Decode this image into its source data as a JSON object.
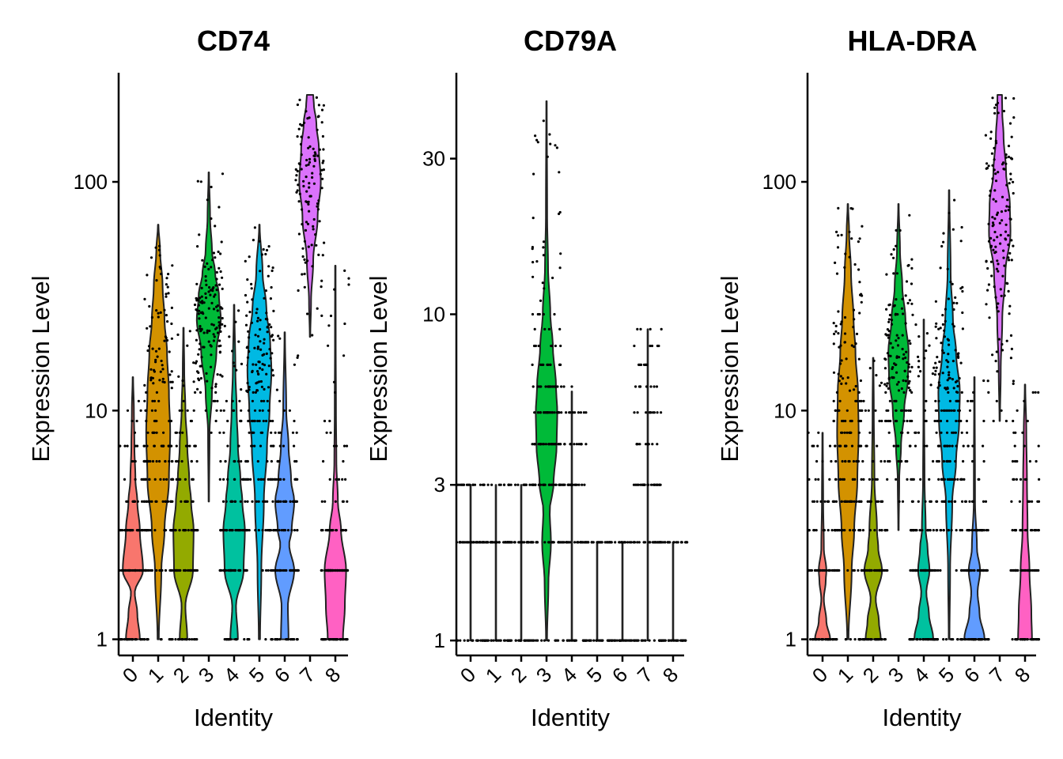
{
  "chart_data": [
    {
      "type": "violin",
      "title": "CD74",
      "xlabel": "Identity",
      "ylabel": "Expression Level",
      "yscale": "log",
      "ylim": [
        0.85,
        300
      ],
      "yticks": [
        1,
        10,
        100
      ],
      "categories": [
        "0",
        "1",
        "2",
        "3",
        "4",
        "5",
        "6",
        "7",
        "8"
      ],
      "colors": [
        "#F8766D",
        "#D39200",
        "#93AA00",
        "#00BA38",
        "#00C19F",
        "#00B9E3",
        "#619CFF",
        "#DB72FB",
        "#FF61C3"
      ],
      "series": [
        {
          "category": "0",
          "min": 1,
          "max": 14,
          "median": 2,
          "shape": [
            [
              1,
              0.55
            ],
            [
              1.3,
              0.35
            ],
            [
              1.6,
              0.15
            ],
            [
              2,
              0.8
            ],
            [
              3,
              0.55
            ],
            [
              4,
              0.35
            ],
            [
              5,
              0.2
            ],
            [
              7,
              0.12
            ],
            [
              10,
              0.08
            ],
            [
              14,
              0.02
            ]
          ]
        },
        {
          "category": "1",
          "min": 1,
          "max": 65,
          "median": 7,
          "shape": [
            [
              1,
              0.05
            ],
            [
              2,
              0.25
            ],
            [
              3,
              0.5
            ],
            [
              5,
              0.85
            ],
            [
              8,
              0.95
            ],
            [
              12,
              0.85
            ],
            [
              18,
              0.7
            ],
            [
              25,
              0.5
            ],
            [
              35,
              0.35
            ],
            [
              50,
              0.15
            ],
            [
              65,
              0.02
            ]
          ]
        },
        {
          "category": "2",
          "min": 1,
          "max": 23,
          "median": 2,
          "shape": [
            [
              1,
              0.3
            ],
            [
              1.4,
              0.15
            ],
            [
              2,
              0.75
            ],
            [
              3,
              0.8
            ],
            [
              4,
              0.6
            ],
            [
              5,
              0.45
            ],
            [
              7,
              0.3
            ],
            [
              10,
              0.15
            ],
            [
              15,
              0.06
            ],
            [
              23,
              0.02
            ]
          ]
        },
        {
          "category": "3",
          "min": 4,
          "max": 110,
          "median": 27,
          "shape": [
            [
              4,
              0.02
            ],
            [
              8,
              0.06
            ],
            [
              12,
              0.25
            ],
            [
              18,
              0.6
            ],
            [
              25,
              0.95
            ],
            [
              32,
              0.8
            ],
            [
              40,
              0.5
            ],
            [
              50,
              0.25
            ],
            [
              70,
              0.1
            ],
            [
              110,
              0.02
            ]
          ]
        },
        {
          "category": "4",
          "min": 1,
          "max": 29,
          "median": 3,
          "shape": [
            [
              1,
              0.3
            ],
            [
              1.4,
              0.15
            ],
            [
              2,
              0.75
            ],
            [
              3,
              0.85
            ],
            [
              4,
              0.65
            ],
            [
              5,
              0.5
            ],
            [
              7,
              0.3
            ],
            [
              10,
              0.2
            ],
            [
              15,
              0.1
            ],
            [
              29,
              0.02
            ]
          ]
        },
        {
          "category": "5",
          "min": 1,
          "max": 65,
          "median": 14,
          "shape": [
            [
              1,
              0.05
            ],
            [
              2,
              0.15
            ],
            [
              4,
              0.35
            ],
            [
              7,
              0.6
            ],
            [
              10,
              0.8
            ],
            [
              15,
              0.95
            ],
            [
              20,
              0.85
            ],
            [
              28,
              0.55
            ],
            [
              40,
              0.25
            ],
            [
              65,
              0.02
            ]
          ]
        },
        {
          "category": "6",
          "min": 1,
          "max": 22,
          "median": 2,
          "shape": [
            [
              1,
              0.3
            ],
            [
              1.4,
              0.25
            ],
            [
              2,
              0.75
            ],
            [
              2.6,
              0.35
            ],
            [
              3,
              0.55
            ],
            [
              4,
              0.75
            ],
            [
              5,
              0.5
            ],
            [
              7,
              0.3
            ],
            [
              10,
              0.12
            ],
            [
              22,
              0.02
            ]
          ]
        },
        {
          "category": "7",
          "min": 21,
          "max": 240,
          "median": 90,
          "shape": [
            [
              21,
              0.02
            ],
            [
              30,
              0.08
            ],
            [
              45,
              0.25
            ],
            [
              70,
              0.6
            ],
            [
              100,
              0.85
            ],
            [
              140,
              0.7
            ],
            [
              180,
              0.5
            ],
            [
              220,
              0.3
            ],
            [
              240,
              0.25
            ]
          ]
        },
        {
          "category": "8",
          "min": 1,
          "max": 43,
          "median": 2,
          "shape": [
            [
              1,
              0.6
            ],
            [
              1.4,
              0.75
            ],
            [
              2,
              0.85
            ],
            [
              3,
              0.45
            ],
            [
              4,
              0.2
            ],
            [
              6,
              0.08
            ],
            [
              10,
              0.05
            ],
            [
              20,
              0.03
            ],
            [
              43,
              0.02
            ]
          ]
        }
      ]
    },
    {
      "type": "violin",
      "title": "CD79A",
      "xlabel": "Identity",
      "ylabel": "Expression Level",
      "yscale": "log",
      "ylim": [
        0.9,
        55
      ],
      "yticks": [
        1,
        3,
        10,
        30
      ],
      "categories": [
        "0",
        "1",
        "2",
        "3",
        "4",
        "5",
        "6",
        "7",
        "8"
      ],
      "colors": [
        "#F8766D",
        "#D39200",
        "#93AA00",
        "#00BA38",
        "#00C19F",
        "#00B9E3",
        "#619CFF",
        "#DB72FB",
        "#FF61C3"
      ],
      "series": [
        {
          "category": "0",
          "min": 1,
          "max": 3,
          "median": 1,
          "shape": [
            [
              1,
              0.02
            ],
            [
              3,
              0.02
            ]
          ]
        },
        {
          "category": "1",
          "min": 1,
          "max": 3,
          "median": 1,
          "shape": [
            [
              1,
              0.02
            ],
            [
              3,
              0.02
            ]
          ]
        },
        {
          "category": "2",
          "min": 1,
          "max": 3,
          "median": 1,
          "shape": [
            [
              1,
              0.02
            ],
            [
              3,
              0.02
            ]
          ]
        },
        {
          "category": "3",
          "min": 1,
          "max": 45,
          "median": 5,
          "shape": [
            [
              1,
              0.04
            ],
            [
              1.5,
              0.15
            ],
            [
              2,
              0.35
            ],
            [
              2.5,
              0.25
            ],
            [
              3,
              0.55
            ],
            [
              4,
              0.8
            ],
            [
              5,
              0.85
            ],
            [
              6,
              0.75
            ],
            [
              8,
              0.5
            ],
            [
              10,
              0.3
            ],
            [
              14,
              0.12
            ],
            [
              20,
              0.05
            ],
            [
              45,
              0.02
            ]
          ]
        },
        {
          "category": "4",
          "min": 1,
          "max": 5.8,
          "median": 1,
          "shape": [
            [
              1,
              0.02
            ],
            [
              5.8,
              0.02
            ]
          ]
        },
        {
          "category": "5",
          "min": 1,
          "max": 2,
          "median": 1,
          "shape": [
            [
              1,
              0.02
            ],
            [
              2,
              0.02
            ]
          ]
        },
        {
          "category": "6",
          "min": 1,
          "max": 2,
          "median": 1,
          "shape": [
            [
              1,
              0.02
            ],
            [
              2,
              0.02
            ]
          ]
        },
        {
          "category": "7",
          "min": 1,
          "max": 9,
          "median": 1,
          "shape": [
            [
              1,
              0.02
            ],
            [
              9,
              0.02
            ]
          ]
        },
        {
          "category": "8",
          "min": 1,
          "max": 2,
          "median": 1,
          "shape": [
            [
              1,
              0.02
            ],
            [
              2,
              0.02
            ]
          ]
        }
      ]
    },
    {
      "type": "violin",
      "title": "HLA-DRA",
      "xlabel": "Identity",
      "ylabel": "Expression Level",
      "yscale": "log",
      "ylim": [
        0.85,
        300
      ],
      "yticks": [
        1,
        10,
        100
      ],
      "categories": [
        "0",
        "1",
        "2",
        "3",
        "4",
        "5",
        "6",
        "7",
        "8"
      ],
      "colors": [
        "#F8766D",
        "#D39200",
        "#93AA00",
        "#00BA38",
        "#00C19F",
        "#00B9E3",
        "#619CFF",
        "#DB72FB",
        "#FF61C3"
      ],
      "series": [
        {
          "category": "0",
          "min": 1,
          "max": 8,
          "median": 1,
          "shape": [
            [
              1,
              0.6
            ],
            [
              1.2,
              0.3
            ],
            [
              1.5,
              0.1
            ],
            [
              1.8,
              0.25
            ],
            [
              2,
              0.3
            ],
            [
              2.5,
              0.1
            ],
            [
              4,
              0.05
            ],
            [
              8,
              0.02
            ]
          ]
        },
        {
          "category": "1",
          "min": 1,
          "max": 80,
          "median": 7,
          "shape": [
            [
              1,
              0.05
            ],
            [
              2,
              0.3
            ],
            [
              3,
              0.5
            ],
            [
              5,
              0.75
            ],
            [
              8,
              0.85
            ],
            [
              12,
              0.8
            ],
            [
              18,
              0.6
            ],
            [
              25,
              0.45
            ],
            [
              40,
              0.25
            ],
            [
              60,
              0.1
            ],
            [
              80,
              0.02
            ]
          ]
        },
        {
          "category": "2",
          "min": 1,
          "max": 17,
          "median": 2,
          "shape": [
            [
              1,
              0.6
            ],
            [
              1.2,
              0.45
            ],
            [
              1.5,
              0.2
            ],
            [
              2,
              0.7
            ],
            [
              2.5,
              0.4
            ],
            [
              3,
              0.3
            ],
            [
              5,
              0.1
            ],
            [
              10,
              0.05
            ],
            [
              17,
              0.02
            ]
          ]
        },
        {
          "category": "3",
          "min": 3,
          "max": 80,
          "median": 16,
          "shape": [
            [
              3,
              0.02
            ],
            [
              5,
              0.06
            ],
            [
              7,
              0.2
            ],
            [
              10,
              0.45
            ],
            [
              14,
              0.75
            ],
            [
              18,
              0.8
            ],
            [
              25,
              0.55
            ],
            [
              35,
              0.3
            ],
            [
              50,
              0.12
            ],
            [
              80,
              0.02
            ]
          ]
        },
        {
          "category": "4",
          "min": 1,
          "max": 25,
          "median": 2,
          "shape": [
            [
              1,
              0.75
            ],
            [
              1.3,
              0.4
            ],
            [
              1.6,
              0.2
            ],
            [
              2,
              0.45
            ],
            [
              2.5,
              0.3
            ],
            [
              3,
              0.15
            ],
            [
              5,
              0.06
            ],
            [
              10,
              0.03
            ],
            [
              25,
              0.02
            ]
          ]
        },
        {
          "category": "5",
          "min": 1,
          "max": 92,
          "median": 10,
          "shape": [
            [
              1,
              0.03
            ],
            [
              2,
              0.08
            ],
            [
              4,
              0.25
            ],
            [
              6,
              0.55
            ],
            [
              9,
              0.8
            ],
            [
              12,
              0.85
            ],
            [
              18,
              0.55
            ],
            [
              25,
              0.3
            ],
            [
              40,
              0.12
            ],
            [
              92,
              0.02
            ]
          ]
        },
        {
          "category": "6",
          "min": 1,
          "max": 14,
          "median": 1,
          "shape": [
            [
              1,
              0.8
            ],
            [
              1.3,
              0.4
            ],
            [
              1.6,
              0.25
            ],
            [
              2,
              0.45
            ],
            [
              2.5,
              0.2
            ],
            [
              4,
              0.05
            ],
            [
              14,
              0.02
            ]
          ]
        },
        {
          "category": "7",
          "min": 9,
          "max": 240,
          "median": 70,
          "shape": [
            [
              9,
              0.02
            ],
            [
              15,
              0.08
            ],
            [
              25,
              0.2
            ],
            [
              40,
              0.45
            ],
            [
              60,
              0.85
            ],
            [
              80,
              0.8
            ],
            [
              110,
              0.5
            ],
            [
              160,
              0.3
            ],
            [
              200,
              0.2
            ],
            [
              240,
              0.18
            ]
          ]
        },
        {
          "category": "8",
          "min": 1,
          "max": 13,
          "median": 2,
          "shape": [
            [
              1,
              0.55
            ],
            [
              1.3,
              0.5
            ],
            [
              2,
              0.35
            ],
            [
              3,
              0.2
            ],
            [
              5,
              0.15
            ],
            [
              8,
              0.1
            ],
            [
              13,
              0.02
            ]
          ]
        }
      ]
    }
  ]
}
